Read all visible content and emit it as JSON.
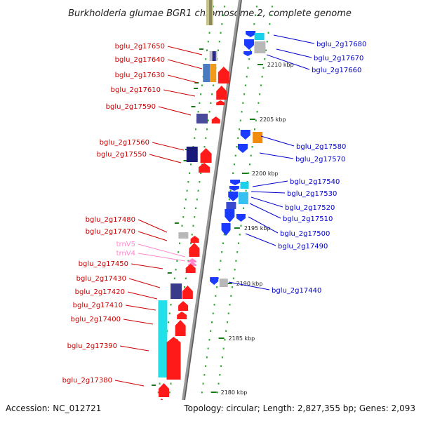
{
  "title": "Burkholderia glumae BGR1 chromosome 2, complete genome",
  "footer": {
    "accession": "Accession: NC_012721",
    "summary": "Topology: circular; Length: 2,827,355 bp; Genes: 2,093"
  },
  "colors": {
    "backbone": "#9a9a9a",
    "forward_label": "#cc0000",
    "reverse_label": "#0000cc",
    "trna_label": "#ff88cc",
    "tick": "#1a7a1a",
    "dot": "#33aa33",
    "forward_cds": "#ff1a1a",
    "reverse_cds": "#1a3aff",
    "trna": "#ff88cc"
  },
  "ticks": [
    {
      "kbp": 2210,
      "label": "2210 kbp"
    },
    {
      "kbp": 2205,
      "label": "2205 kbp"
    },
    {
      "kbp": 2200,
      "label": "2200 kbp"
    },
    {
      "kbp": 2195,
      "label": "2195 kbp"
    },
    {
      "kbp": 2190,
      "label": "2190 kbp"
    },
    {
      "kbp": 2185,
      "label": "2185 kbp"
    },
    {
      "kbp": 2180,
      "label": "2180 kbp"
    }
  ],
  "forward_labels": [
    {
      "text": "bglu_2g17650",
      "kind": "cds"
    },
    {
      "text": "bglu_2g17640",
      "kind": "cds"
    },
    {
      "text": "bglu_2g17630",
      "kind": "cds"
    },
    {
      "text": "bglu_2g17610",
      "kind": "cds"
    },
    {
      "text": "bglu_2g17590",
      "kind": "cds"
    },
    {
      "text": "bglu_2g17560",
      "kind": "cds"
    },
    {
      "text": "bglu_2g17550",
      "kind": "cds"
    },
    {
      "text": "bglu_2g17480",
      "kind": "cds"
    },
    {
      "text": "bglu_2g17470",
      "kind": "cds"
    },
    {
      "text": "trnV5",
      "kind": "trna"
    },
    {
      "text": "trnV4",
      "kind": "trna"
    },
    {
      "text": "bglu_2g17450",
      "kind": "cds"
    },
    {
      "text": "bglu_2g17430",
      "kind": "cds"
    },
    {
      "text": "bglu_2g17420",
      "kind": "cds"
    },
    {
      "text": "bglu_2g17410",
      "kind": "cds"
    },
    {
      "text": "bglu_2g17400",
      "kind": "cds"
    },
    {
      "text": "bglu_2g17390",
      "kind": "cds"
    },
    {
      "text": "bglu_2g17380",
      "kind": "cds"
    }
  ],
  "reverse_labels": [
    {
      "text": "bglu_2g17680"
    },
    {
      "text": "bglu_2g17670"
    },
    {
      "text": "bglu_2g17660"
    },
    {
      "text": "bglu_2g17580"
    },
    {
      "text": "bglu_2g17570"
    },
    {
      "text": "bglu_2g17540"
    },
    {
      "text": "bglu_2g17530"
    },
    {
      "text": "bglu_2g17520"
    },
    {
      "text": "bglu_2g17510"
    },
    {
      "text": "bglu_2g17500"
    },
    {
      "text": "bglu_2g17490"
    },
    {
      "text": "bglu_2g17440"
    }
  ]
}
